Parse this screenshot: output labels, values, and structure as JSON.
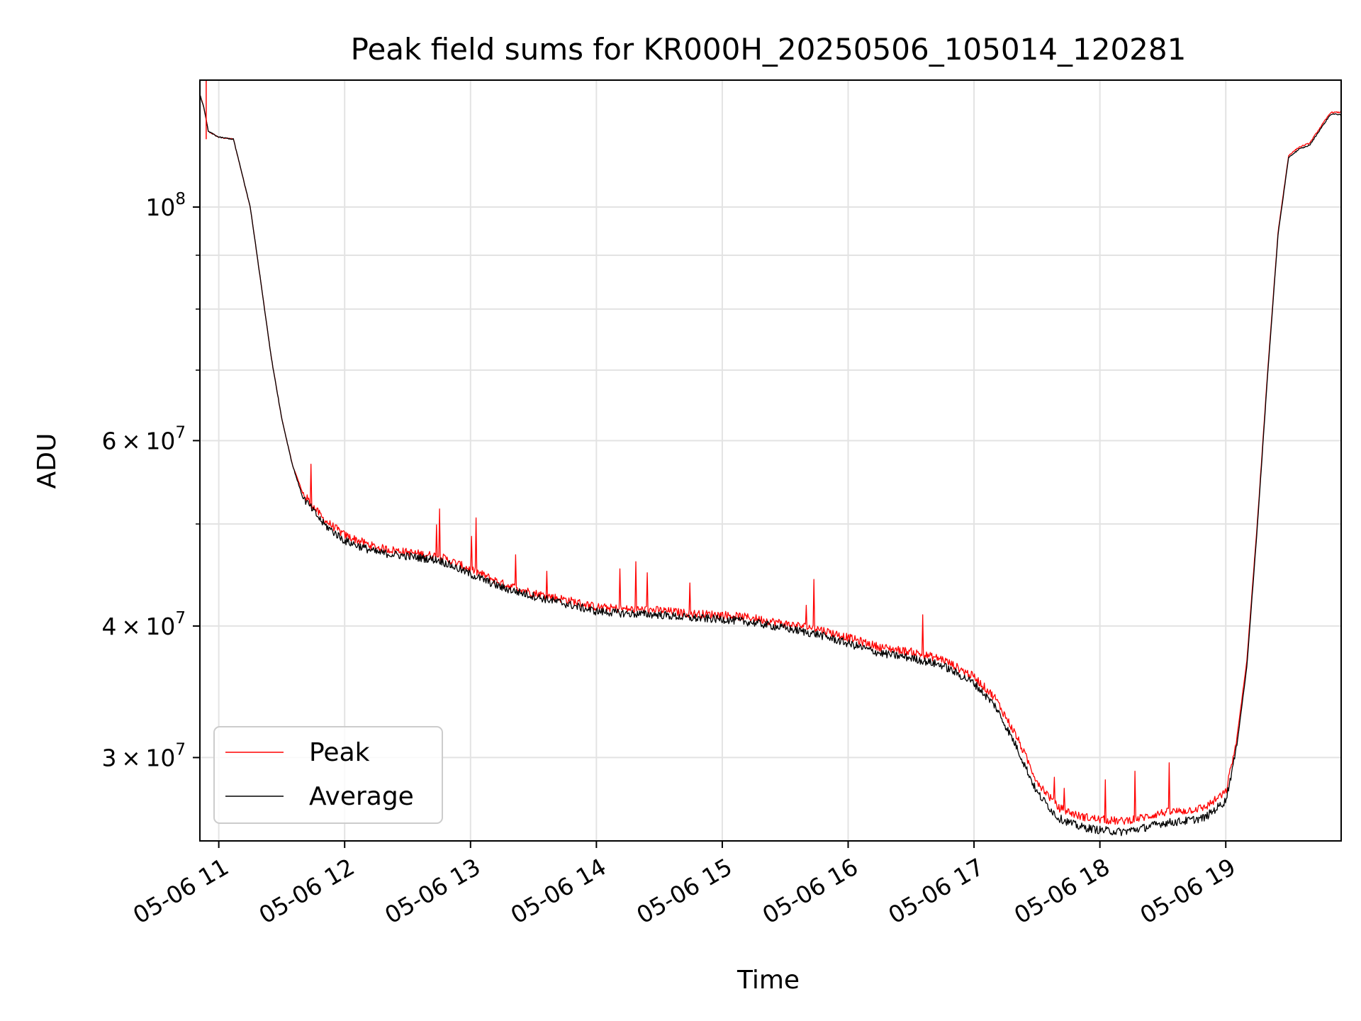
{
  "chart_data": {
    "type": "line",
    "title": "Peak field sums for KR000H_20250506_105014_120281",
    "xlabel": "Time",
    "ylabel": "ADU",
    "yscale": "log",
    "ylim": [
      25000000,
      132000000
    ],
    "xlim": [
      "2025-05-06 10:51",
      "2025-05-06 19:55"
    ],
    "grid": true,
    "legend": "lower-left",
    "x_ticks": [
      "05-06 11",
      "05-06 12",
      "05-06 13",
      "05-06 14",
      "05-06 15",
      "05-06 16",
      "05-06 17",
      "05-06 18",
      "05-06 19"
    ],
    "x_tick_times": [
      "2025-05-06 11:00",
      "2025-05-06 12:00",
      "2025-05-06 13:00",
      "2025-05-06 14:00",
      "2025-05-06 15:00",
      "2025-05-06 16:00",
      "2025-05-06 17:00",
      "2025-05-06 18:00",
      "2025-05-06 19:00"
    ],
    "y_ticks": [
      {
        "value": 100000000,
        "mantissa": "",
        "exp": "8"
      },
      {
        "value": 60000000,
        "mantissa": "6",
        "exp": "7"
      },
      {
        "value": 40000000,
        "mantissa": "4",
        "exp": "7"
      },
      {
        "value": 30000000,
        "mantissa": "3",
        "exp": "7"
      }
    ],
    "x": [
      "10:51",
      "10:53",
      "10:55",
      "11:00",
      "11:07",
      "11:15",
      "11:20",
      "11:25",
      "11:30",
      "11:35",
      "11:40",
      "11:50",
      "12:00",
      "12:15",
      "12:30",
      "12:45",
      "13:00",
      "13:15",
      "13:30",
      "13:45",
      "14:00",
      "14:15",
      "14:30",
      "14:45",
      "15:00",
      "15:15",
      "15:30",
      "15:45",
      "16:00",
      "16:15",
      "16:30",
      "16:45",
      "17:00",
      "17:10",
      "17:20",
      "17:30",
      "17:40",
      "17:50",
      "18:00",
      "18:10",
      "18:20",
      "18:30",
      "18:40",
      "18:50",
      "19:00",
      "19:05",
      "19:10",
      "19:15",
      "19:20",
      "19:25",
      "19:30",
      "19:35",
      "19:40",
      "19:45",
      "19:50",
      "19:55"
    ],
    "series": [
      {
        "name": "Peak",
        "color": "#ff0000",
        "values": [
          128000000,
          124000000,
          118000000,
          116500000,
          116000000,
          100000000,
          85000000,
          72000000,
          63000000,
          57000000,
          53500000,
          50500000,
          48800000,
          47500000,
          47000000,
          46600000,
          45300000,
          43900000,
          43000000,
          42400000,
          41700000,
          41500000,
          41400000,
          41100000,
          41000000,
          40700000,
          40200000,
          39800000,
          39000000,
          38200000,
          37800000,
          37200000,
          35800000,
          34200000,
          31500000,
          28500000,
          26900000,
          26400000,
          26200000,
          26100000,
          26300000,
          26600000,
          26700000,
          26900000,
          27800000,
          31000000,
          37000000,
          50000000,
          70000000,
          95000000,
          112000000,
          114000000,
          115000000,
          119000000,
          123000000,
          123000000
        ]
      },
      {
        "name": "Average",
        "color": "#000000",
        "values": [
          128000000,
          124000000,
          118000000,
          116500000,
          116000000,
          100000000,
          85000000,
          72000000,
          63000000,
          57000000,
          53000000,
          50000000,
          48200000,
          47000000,
          46600000,
          46200000,
          44800000,
          43500000,
          42700000,
          42000000,
          41300000,
          41100000,
          41000000,
          40700000,
          40600000,
          40300000,
          39800000,
          39300000,
          38500000,
          37700000,
          37300000,
          36700000,
          35300000,
          33600000,
          30800000,
          27800000,
          26300000,
          25800000,
          25600000,
          25500000,
          25700000,
          26000000,
          26100000,
          26300000,
          27300000,
          30500000,
          36500000,
          49500000,
          69500000,
          94500000,
          111500000,
          113500000,
          114500000,
          118500000,
          122500000,
          122500000
        ]
      }
    ]
  }
}
